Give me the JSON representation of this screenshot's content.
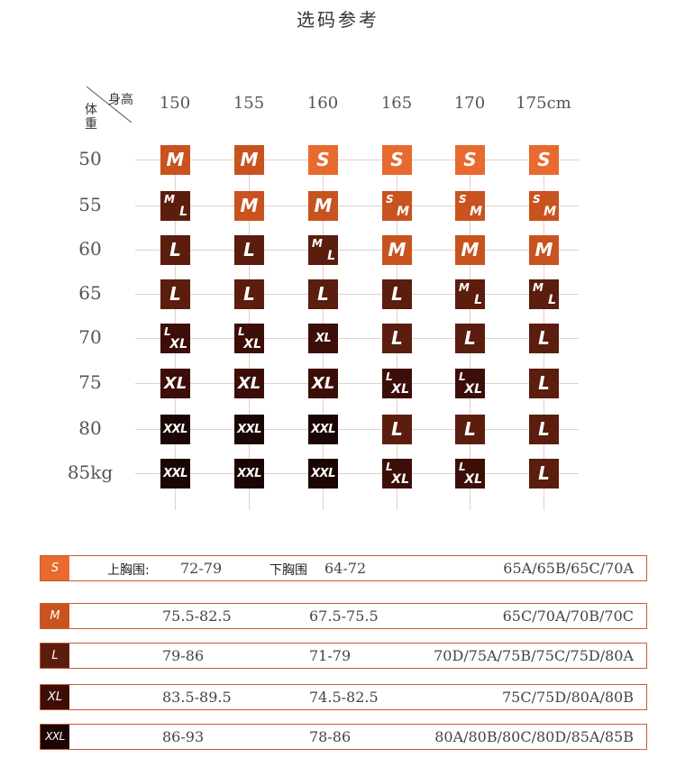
{
  "title": "选码参考",
  "corner": {
    "height_label": "身高",
    "weight_label": "体重"
  },
  "columns": [
    "150",
    "155",
    "160",
    "165",
    "170",
    "175cm"
  ],
  "rows": [
    {
      "label": "50",
      "cells": [
        {
          "s": "M"
        },
        {
          "s": "M"
        },
        {
          "s": "S"
        },
        {
          "s": "S"
        },
        {
          "s": "S"
        },
        {
          "s": "S"
        }
      ]
    },
    {
      "label": "55",
      "cells": [
        {
          "a": "M",
          "b": "L"
        },
        {
          "s": "M"
        },
        {
          "s": "M"
        },
        {
          "a": "S",
          "b": "M"
        },
        {
          "a": "S",
          "b": "M"
        },
        {
          "a": "S",
          "b": "M"
        }
      ]
    },
    {
      "label": "60",
      "cells": [
        {
          "s": "L"
        },
        {
          "s": "L"
        },
        {
          "a": "M",
          "b": "L"
        },
        {
          "s": "M"
        },
        {
          "s": "M"
        },
        {
          "s": "M"
        }
      ]
    },
    {
      "label": "65",
      "cells": [
        {
          "s": "L"
        },
        {
          "s": "L"
        },
        {
          "s": "L"
        },
        {
          "s": "L"
        },
        {
          "a": "M",
          "b": "L"
        },
        {
          "a": "M",
          "b": "L"
        }
      ]
    },
    {
      "label": "70",
      "cells": [
        {
          "a": "L",
          "b": "XL"
        },
        {
          "a": "L",
          "b": "XL"
        },
        {
          "s": "XL"
        },
        {
          "s": "L"
        },
        {
          "s": "L"
        },
        {
          "s": "L"
        }
      ]
    },
    {
      "label": "75",
      "cells": [
        {
          "s": "XL"
        },
        {
          "s": "XL"
        },
        {
          "s": "XL"
        },
        {
          "a": "L",
          "b": "XL"
        },
        {
          "a": "L",
          "b": "XL"
        },
        {
          "s": "L"
        }
      ]
    },
    {
      "label": "80",
      "cells": [
        {
          "s": "XXL"
        },
        {
          "s": "XXL"
        },
        {
          "s": "XXL"
        },
        {
          "s": "L"
        },
        {
          "s": "L"
        },
        {
          "s": "L"
        }
      ]
    },
    {
      "label": "85kg",
      "cells": [
        {
          "s": "XXL"
        },
        {
          "s": "XXL"
        },
        {
          "s": "XXL"
        },
        {
          "a": "L",
          "b": "XL"
        },
        {
          "a": "L",
          "b": "XL"
        },
        {
          "s": "L"
        }
      ]
    }
  ],
  "colors": {
    "S": "#e86a2f",
    "M": "#c8531f",
    "L": "#5a1d0e",
    "XL": "#3c0e07",
    "XXL": "#1b0503"
  },
  "size_table": {
    "upper_label": "上胸围:",
    "under_label": "下胸围",
    "rows": [
      {
        "size": "S",
        "upper": "72-79",
        "under": "64-72",
        "cups": "65A/65B/65C/70A"
      },
      {
        "size": "M",
        "upper": "75.5-82.5",
        "under": "67.5-75.5",
        "cups": "65C/70A/70B/70C"
      },
      {
        "size": "L",
        "upper": "79-86",
        "under": "71-79",
        "cups": "70D/75A/75B/75C/75D/80A"
      },
      {
        "size": "XL",
        "upper": "83.5-89.5",
        "under": "74.5-82.5",
        "cups": "75C/75D/80A/80B"
      },
      {
        "size": "XXL",
        "upper": "86-93",
        "under": "78-86",
        "cups": "80A/80B/80C/80D/85A/85B"
      }
    ]
  }
}
